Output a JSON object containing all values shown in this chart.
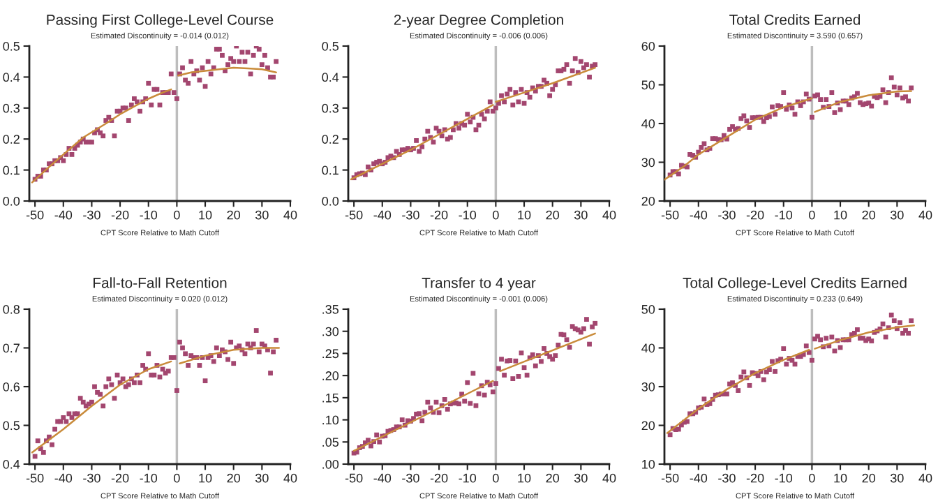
{
  "chart_data": [
    {
      "type": "scatter",
      "title": "Passing First College-Level Course",
      "subtitle": "Estimated Discontinuity = -0.014 (0.012)",
      "xlabel": "CPT Score Relative to Math Cutoff",
      "xlim": [
        -52,
        40
      ],
      "xticks": [
        -50,
        -40,
        -30,
        -20,
        -10,
        0,
        10,
        20,
        30,
        40
      ],
      "ylim": [
        0,
        0.5
      ],
      "yticks": [
        {
          "value": 0,
          "label": "0.0"
        },
        0.1,
        0.2,
        0.3,
        0.4,
        0.5
      ],
      "x": [
        -50,
        -49,
        -48,
        -47,
        -46,
        -45,
        -44,
        -43,
        -42,
        -41,
        -40,
        -39,
        -38,
        -37,
        -36,
        -35,
        -34,
        -33,
        -32,
        -31,
        -30,
        -29,
        -28,
        -27,
        -26,
        -25,
        -24,
        -23,
        -22,
        -21,
        -20,
        -19,
        -18,
        -17,
        -16,
        -15,
        -14,
        -13,
        -12,
        -11,
        -10,
        -9,
        -8,
        -7,
        -6,
        -5,
        -4,
        -3,
        -2,
        -1,
        0,
        1,
        2,
        3,
        4,
        5,
        6,
        7,
        8,
        9,
        10,
        11,
        12,
        13,
        14,
        15,
        16,
        17,
        18,
        19,
        20,
        21,
        22,
        23,
        24,
        25,
        26,
        27,
        28,
        29,
        30,
        31,
        32,
        33,
        34,
        35
      ],
      "series": [
        {
          "marker": "square",
          "color": "#a3466f",
          "values": [
            0.07,
            0.08,
            0.08,
            0.1,
            0.1,
            0.12,
            0.12,
            0.13,
            0.13,
            0.14,
            0.13,
            0.15,
            0.17,
            0.15,
            0.17,
            0.18,
            0.19,
            0.2,
            0.19,
            0.19,
            0.19,
            0.22,
            0.23,
            0.22,
            0.21,
            0.26,
            0.27,
            0.26,
            0.21,
            0.29,
            0.29,
            0.3,
            0.3,
            0.26,
            0.31,
            0.33,
            0.32,
            0.29,
            0.32,
            0.33,
            0.38,
            0.31,
            0.36,
            0.36,
            0.31,
            0.35,
            0.35,
            0.35,
            0.41,
            0.35,
            0.33,
            0.41,
            0.43,
            0.39,
            0.38,
            0.45,
            0.41,
            0.42,
            0.39,
            0.43,
            0.37,
            0.45,
            0.41,
            0.43,
            0.49,
            0.49,
            0.47,
            0.42,
            0.44,
            0.46,
            0.45,
            0.5,
            0.45,
            0.48,
            0.45,
            0.48,
            0.41,
            0.47,
            0.5,
            0.49,
            0.44,
            0.47,
            0.43,
            0.4,
            0.4,
            0.45
          ]
        },
        {
          "type": "line",
          "marker": "none",
          "color": "#c98b3a",
          "x": [
            -51,
            -45,
            -40,
            -33,
            -25,
            -20,
            -10,
            -5,
            -2
          ],
          "values": [
            0.06,
            0.11,
            0.15,
            0.205,
            0.25,
            0.28,
            0.33,
            0.35,
            0.36
          ]
        },
        {
          "type": "line",
          "marker": "none",
          "color": "#c98b3a",
          "x": [
            0.5,
            5,
            10,
            15,
            20,
            25,
            30,
            35
          ],
          "values": [
            0.405,
            0.415,
            0.42,
            0.425,
            0.43,
            0.428,
            0.425,
            0.415
          ]
        }
      ],
      "ref_lines": [
        {
          "axis": "x",
          "value": 0,
          "color": "#bdbdbd"
        }
      ]
    },
    {
      "type": "scatter",
      "title": "2-year Degree Completion",
      "subtitle": "Estimated Discontinuity = -0.006 (0.006)",
      "xlabel": "CPT Score Relative to Math Cutoff",
      "xlim": [
        -52,
        40
      ],
      "xticks": [
        -50,
        -40,
        -30,
        -20,
        -10,
        0,
        10,
        20,
        30,
        40
      ],
      "ylim": [
        0,
        0.5
      ],
      "yticks": [
        {
          "value": 0,
          "label": "0.0"
        },
        0.1,
        0.2,
        0.3,
        0.4,
        0.5
      ],
      "x": [
        -50,
        -49,
        -48,
        -47,
        -46,
        -45,
        -44,
        -43,
        -42,
        -41,
        -40,
        -39,
        -38,
        -37,
        -36,
        -35,
        -34,
        -33,
        -32,
        -31,
        -30,
        -29,
        -28,
        -27,
        -26,
        -25,
        -24,
        -23,
        -22,
        -21,
        -20,
        -19,
        -18,
        -17,
        -16,
        -15,
        -14,
        -13,
        -12,
        -11,
        -10,
        -9,
        -8,
        -7,
        -6,
        -5,
        -4,
        -3,
        -2,
        -1,
        0,
        1,
        2,
        3,
        4,
        5,
        6,
        7,
        8,
        9,
        10,
        11,
        12,
        13,
        14,
        15,
        16,
        17,
        18,
        19,
        20,
        21,
        22,
        23,
        24,
        25,
        26,
        27,
        28,
        29,
        30,
        31,
        32,
        33,
        34,
        35
      ],
      "series": [
        {
          "marker": "square",
          "color": "#a3466f",
          "values": [
            0.075,
            0.085,
            0.088,
            0.09,
            0.085,
            0.11,
            0.1,
            0.12,
            0.125,
            0.128,
            0.12,
            0.125,
            0.14,
            0.145,
            0.14,
            0.16,
            0.15,
            0.165,
            0.165,
            0.17,
            0.165,
            0.17,
            0.195,
            0.16,
            0.175,
            0.2,
            0.225,
            0.205,
            0.19,
            0.235,
            0.225,
            0.21,
            0.23,
            0.2,
            0.205,
            0.23,
            0.25,
            0.235,
            0.25,
            0.245,
            0.28,
            0.255,
            0.27,
            0.23,
            0.245,
            0.28,
            0.265,
            0.29,
            0.32,
            0.29,
            0.3,
            0.315,
            0.34,
            0.32,
            0.345,
            0.36,
            0.31,
            0.35,
            0.32,
            0.36,
            0.315,
            0.35,
            0.335,
            0.365,
            0.355,
            0.37,
            0.37,
            0.39,
            0.38,
            0.34,
            0.36,
            0.375,
            0.42,
            0.42,
            0.425,
            0.44,
            0.38,
            0.42,
            0.46,
            0.415,
            0.45,
            0.43,
            0.44,
            0.4,
            0.435,
            0.44
          ]
        },
        {
          "type": "line",
          "marker": "none",
          "color": "#c98b3a",
          "x": [
            -51,
            -30,
            -10,
            -1
          ],
          "values": [
            0.07,
            0.165,
            0.265,
            0.31
          ]
        },
        {
          "type": "line",
          "marker": "none",
          "color": "#c98b3a",
          "x": [
            0,
            10,
            20,
            35
          ],
          "values": [
            0.32,
            0.35,
            0.38,
            0.43
          ]
        }
      ],
      "ref_lines": [
        {
          "axis": "x",
          "value": 0,
          "color": "#bdbdbd"
        }
      ]
    },
    {
      "type": "scatter",
      "title": "Total Credits Earned",
      "subtitle": "Estimated Discontinuity = 3.590 (0.657)",
      "xlabel": "CPT Score Relative to Math Cutoff",
      "xlim": [
        -52,
        40
      ],
      "xticks": [
        -50,
        -40,
        -30,
        -20,
        -10,
        0,
        10,
        20,
        30,
        40
      ],
      "ylim": [
        20,
        60
      ],
      "yticks": [
        20,
        30,
        40,
        50,
        60
      ],
      "x": [
        -50,
        -49,
        -48,
        -47,
        -46,
        -45,
        -44,
        -43,
        -42,
        -41,
        -40,
        -39,
        -38,
        -37,
        -36,
        -35,
        -34,
        -33,
        -32,
        -31,
        -30,
        -29,
        -28,
        -27,
        -26,
        -25,
        -24,
        -23,
        -22,
        -21,
        -20,
        -19,
        -18,
        -17,
        -16,
        -15,
        -14,
        -13,
        -12,
        -11,
        -10,
        -9,
        -8,
        -7,
        -6,
        -5,
        -4,
        -3,
        -2,
        -1,
        0,
        1,
        2,
        3,
        4,
        5,
        6,
        7,
        8,
        9,
        10,
        11,
        12,
        13,
        14,
        15,
        16,
        17,
        18,
        19,
        20,
        21,
        22,
        23,
        24,
        25,
        26,
        27,
        28,
        29,
        30,
        31,
        32,
        33,
        34,
        35
      ],
      "series": [
        {
          "marker": "square",
          "color": "#a3466f",
          "values": [
            26.7,
            27.6,
            27.6,
            27.0,
            29.2,
            29.0,
            28.8,
            32.0,
            31.8,
            31.3,
            32.6,
            33.8,
            34.8,
            33.2,
            33.6,
            36.1,
            36.1,
            35.9,
            35.8,
            36.9,
            36.0,
            38.5,
            39.2,
            38.5,
            38.7,
            41.3,
            42.0,
            40.7,
            39.0,
            41.5,
            41.5,
            41.6,
            41.6,
            40.5,
            41.5,
            41.8,
            44.3,
            42.4,
            44.6,
            44.4,
            48.0,
            43.7,
            44.8,
            44.0,
            42.4,
            45.6,
            44.6,
            45.6,
            47.6,
            46.3,
            41.6,
            47.1,
            47.4,
            46.2,
            44.2,
            46.2,
            44.4,
            48.0,
            42.8,
            45.3,
            43.6,
            45.8,
            45.8,
            44.9,
            46.6,
            46.9,
            47.8,
            45.4,
            44.9,
            45.1,
            45.3,
            44.5,
            47.0,
            46.7,
            47.0,
            48.7,
            45.4,
            48.0,
            51.8,
            49.4,
            47.4,
            49.2,
            46.6,
            46.9,
            45.8,
            49.2
          ]
        },
        {
          "type": "line",
          "marker": "none",
          "color": "#c98b3a",
          "x": [
            -52,
            -45,
            -40,
            -30,
            -20,
            -10,
            0
          ],
          "values": [
            25.5,
            29.0,
            32.0,
            36.5,
            41.0,
            44.2,
            46.5
          ]
        },
        {
          "type": "line",
          "marker": "none",
          "color": "#c98b3a",
          "x": [
            1,
            10,
            20,
            30,
            35
          ],
          "values": [
            43.0,
            45.6,
            47.3,
            48.3,
            48.4
          ]
        }
      ],
      "ref_lines": [
        {
          "axis": "x",
          "value": 0,
          "color": "#bdbdbd"
        }
      ]
    },
    {
      "type": "scatter",
      "title": "Fall-to-Fall Retention",
      "subtitle": "Estimated Discontinuity = 0.020 (0.012)",
      "xlabel": "CPT Score Relative to Math Cutoff",
      "xlim": [
        -52,
        40
      ],
      "xticks": [
        -50,
        -40,
        -30,
        -20,
        -10,
        0,
        10,
        20,
        30,
        40
      ],
      "ylim": [
        0.4,
        0.8
      ],
      "yticks": [
        0.4,
        0.5,
        0.6,
        0.7,
        0.8
      ],
      "x": [
        -50,
        -49,
        -48,
        -47,
        -46,
        -45,
        -44,
        -43,
        -42,
        -41,
        -40,
        -39,
        -38,
        -37,
        -36,
        -35,
        -34,
        -33,
        -32,
        -31,
        -30,
        -29,
        -28,
        -27,
        -26,
        -25,
        -24,
        -23,
        -22,
        -21,
        -20,
        -19,
        -18,
        -17,
        -16,
        -15,
        -14,
        -13,
        -12,
        -11,
        -10,
        -9,
        -8,
        -7,
        -6,
        -5,
        -4,
        -3,
        -2,
        -1,
        0,
        1,
        2,
        3,
        4,
        5,
        6,
        7,
        8,
        9,
        10,
        11,
        12,
        13,
        14,
        15,
        16,
        17,
        18,
        19,
        20,
        21,
        22,
        23,
        24,
        25,
        26,
        27,
        28,
        29,
        30,
        31,
        32,
        33,
        34,
        35
      ],
      "series": [
        {
          "marker": "square",
          "color": "#a3466f",
          "values": [
            0.42,
            0.46,
            0.44,
            0.43,
            0.46,
            0.47,
            0.45,
            0.49,
            0.51,
            0.51,
            0.52,
            0.51,
            0.53,
            0.52,
            0.53,
            0.53,
            0.57,
            0.56,
            0.55,
            0.555,
            0.56,
            0.6,
            0.585,
            0.58,
            0.55,
            0.6,
            0.62,
            0.605,
            0.57,
            0.63,
            0.61,
            0.62,
            0.6,
            0.605,
            0.62,
            0.61,
            0.63,
            0.61,
            0.655,
            0.645,
            0.685,
            0.63,
            0.63,
            0.655,
            0.625,
            0.645,
            0.635,
            0.64,
            0.675,
            0.675,
            0.59,
            0.715,
            0.7,
            0.685,
            0.655,
            0.68,
            0.675,
            0.675,
            0.655,
            0.675,
            0.615,
            0.675,
            0.68,
            0.665,
            0.7,
            0.68,
            0.695,
            0.69,
            0.67,
            0.715,
            0.66,
            0.7,
            0.705,
            0.695,
            0.685,
            0.71,
            0.7,
            0.71,
            0.745,
            0.69,
            0.71,
            0.705,
            0.695,
            0.635,
            0.69,
            0.72
          ]
        },
        {
          "type": "line",
          "marker": "none",
          "color": "#c98b3a",
          "x": [
            -51,
            -40,
            -30,
            -20,
            -10,
            -2
          ],
          "values": [
            0.43,
            0.49,
            0.55,
            0.605,
            0.645,
            0.665
          ]
        },
        {
          "type": "line",
          "marker": "none",
          "color": "#c98b3a",
          "x": [
            1,
            10,
            20,
            30,
            36
          ],
          "values": [
            0.66,
            0.68,
            0.695,
            0.7,
            0.7
          ]
        }
      ],
      "ref_lines": [
        {
          "axis": "x",
          "value": 0,
          "color": "#bdbdbd"
        }
      ]
    },
    {
      "type": "scatter",
      "title": "Transfer to 4 year",
      "subtitle": "Estimated Discontinuity = -0.001 (0.006)",
      "xlabel": "CPT Score Relative to Math Cutoff",
      "xlim": [
        -52,
        40
      ],
      "xticks": [
        -50,
        -40,
        -30,
        -20,
        -10,
        0,
        10,
        20,
        30,
        40
      ],
      "ylim": [
        0,
        0.35
      ],
      "yticks": [
        {
          "value": 0,
          "label": ".00"
        },
        {
          "value": 0.05,
          "label": ".05"
        },
        {
          "value": 0.1,
          "label": ".10"
        },
        {
          "value": 0.15,
          "label": ".15"
        },
        {
          "value": 0.2,
          "label": ".20"
        },
        {
          "value": 0.25,
          "label": ".25"
        },
        {
          "value": 0.3,
          "label": ".30"
        },
        {
          "value": 0.35,
          "label": ".35"
        }
      ],
      "x": [
        -50,
        -49,
        -48,
        -47,
        -46,
        -45,
        -44,
        -43,
        -42,
        -41,
        -40,
        -39,
        -38,
        -37,
        -36,
        -35,
        -34,
        -33,
        -32,
        -31,
        -30,
        -29,
        -28,
        -27,
        -26,
        -25,
        -24,
        -23,
        -22,
        -21,
        -20,
        -19,
        -18,
        -17,
        -16,
        -15,
        -14,
        -13,
        -12,
        -11,
        -10,
        -9,
        -8,
        -7,
        -6,
        -5,
        -4,
        -3,
        -2,
        -1,
        0,
        1,
        2,
        3,
        4,
        5,
        6,
        7,
        8,
        9,
        10,
        11,
        12,
        13,
        14,
        15,
        16,
        17,
        18,
        19,
        20,
        21,
        22,
        23,
        24,
        25,
        26,
        27,
        28,
        29,
        30,
        31,
        32,
        33,
        34,
        35
      ],
      "series": [
        {
          "marker": "square",
          "color": "#a3466f",
          "values": [
            0.025,
            0.027,
            0.037,
            0.04,
            0.048,
            0.054,
            0.041,
            0.051,
            0.066,
            0.05,
            0.063,
            0.064,
            0.074,
            0.076,
            0.078,
            0.084,
            0.084,
            0.1,
            0.088,
            0.098,
            0.097,
            0.103,
            0.113,
            0.114,
            0.098,
            0.117,
            0.14,
            0.127,
            0.117,
            0.14,
            0.116,
            0.132,
            0.146,
            0.124,
            0.136,
            0.138,
            0.138,
            0.136,
            0.158,
            0.142,
            0.184,
            0.137,
            0.205,
            0.132,
            0.159,
            0.177,
            0.156,
            0.185,
            0.179,
            0.163,
            0.182,
            0.216,
            0.237,
            0.201,
            0.233,
            0.234,
            0.193,
            0.233,
            0.198,
            0.251,
            0.218,
            0.201,
            0.24,
            0.247,
            0.222,
            0.245,
            0.232,
            0.261,
            0.25,
            0.243,
            0.237,
            0.245,
            0.269,
            0.293,
            0.292,
            0.281,
            0.264,
            0.311,
            0.306,
            0.303,
            0.298,
            0.306,
            0.327,
            0.271,
            0.31,
            0.318
          ]
        },
        {
          "type": "line",
          "marker": "none",
          "color": "#c98b3a",
          "x": [
            -50,
            -1
          ],
          "values": [
            0.03,
            0.188
          ]
        },
        {
          "type": "line",
          "marker": "none",
          "color": "#c98b3a",
          "x": [
            1.5,
            35
          ],
          "values": [
            0.21,
            0.295
          ]
        }
      ],
      "ref_lines": [
        {
          "axis": "x",
          "value": 0,
          "color": "#bdbdbd"
        }
      ]
    },
    {
      "type": "scatter",
      "title": "Total College-Level Credits Earned",
      "subtitle": "Estimated Discontinuity = 0.233 (0.649)",
      "xlabel": "CPT Score Relative to Math Cutoff",
      "xlim": [
        -52,
        40
      ],
      "xticks": [
        -50,
        -40,
        -30,
        -20,
        -10,
        0,
        10,
        20,
        30,
        40
      ],
      "ylim": [
        10,
        50
      ],
      "yticks": [
        10,
        20,
        30,
        40,
        50
      ],
      "x": [
        -50,
        -49,
        -48,
        -47,
        -46,
        -45,
        -44,
        -43,
        -42,
        -41,
        -40,
        -39,
        -38,
        -37,
        -36,
        -35,
        -34,
        -33,
        -32,
        -31,
        -30,
        -29,
        -28,
        -27,
        -26,
        -25,
        -24,
        -23,
        -22,
        -21,
        -20,
        -19,
        -18,
        -17,
        -16,
        -15,
        -14,
        -13,
        -12,
        -11,
        -10,
        -9,
        -8,
        -7,
        -6,
        -5,
        -4,
        -3,
        -2,
        -1,
        0,
        1,
        2,
        3,
        4,
        5,
        6,
        7,
        8,
        9,
        10,
        11,
        12,
        13,
        14,
        15,
        16,
        17,
        18,
        19,
        20,
        21,
        22,
        23,
        24,
        25,
        26,
        27,
        28,
        29,
        30,
        31,
        32,
        33,
        34,
        35
      ],
      "series": [
        {
          "marker": "square",
          "color": "#a3466f",
          "values": [
            17.6,
            19.2,
            18.9,
            19.0,
            20.1,
            20.8,
            21.0,
            23.0,
            23.0,
            23.4,
            24.5,
            24.7,
            26.8,
            25.4,
            25.6,
            26.7,
            27.8,
            27.9,
            28.1,
            28.1,
            28.1,
            30.7,
            31.0,
            30.3,
            29.0,
            32.5,
            33.8,
            32.3,
            30.3,
            33.6,
            33.4,
            32.8,
            33.9,
            31.8,
            33.8,
            34.4,
            36.5,
            33.9,
            36.7,
            37.1,
            39.8,
            35.8,
            37.3,
            36.8,
            35.8,
            37.8,
            37.8,
            38.3,
            40.5,
            38.8,
            36.8,
            42.3,
            43.0,
            42.1,
            40.3,
            42.5,
            40.5,
            42.8,
            39.2,
            41.9,
            40.1,
            42.1,
            42.1,
            42.1,
            43.4,
            43.8,
            44.7,
            42.5,
            42.5,
            41.9,
            42.3,
            41.8,
            44.0,
            44.4,
            44.9,
            46.2,
            42.8,
            45.2,
            48.5,
            47.0,
            45.0,
            46.5,
            43.8,
            44.5,
            43.8,
            47.0
          ]
        },
        {
          "type": "line",
          "marker": "none",
          "color": "#c98b3a",
          "x": [
            -51,
            -40,
            -30,
            -20,
            -10,
            -1
          ],
          "values": [
            18.0,
            24.3,
            29.3,
            33.5,
            36.9,
            39.5
          ]
        },
        {
          "type": "line",
          "marker": "none",
          "color": "#c98b3a",
          "x": [
            1,
            10,
            20,
            30,
            36
          ],
          "values": [
            39.8,
            42.0,
            44.0,
            45.3,
            45.8
          ]
        }
      ],
      "ref_lines": [
        {
          "axis": "x",
          "value": 0,
          "color": "#bdbdbd"
        }
      ]
    }
  ]
}
